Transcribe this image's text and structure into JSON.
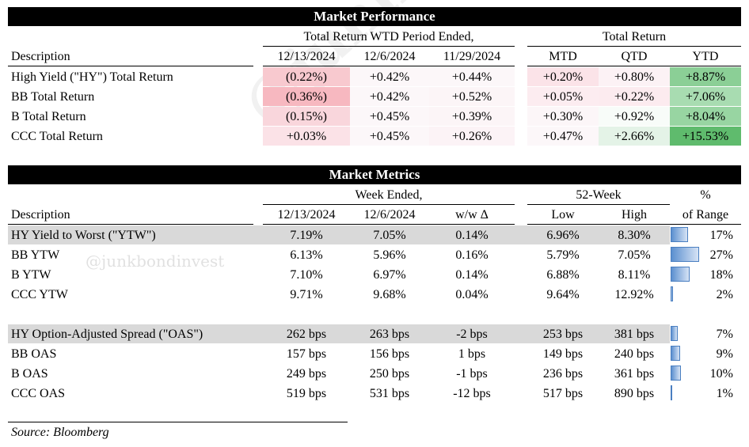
{
  "market_performance": {
    "title": "Market Performance",
    "group1_header": "Total Return WTD Period Ended,",
    "group2_header": "Total Return",
    "desc_header": "Description",
    "columns": [
      "12/13/2024",
      "12/6/2024",
      "11/29/2024",
      "MTD",
      "QTD",
      "YTD"
    ],
    "rows": [
      {
        "label": "High Yield (\"HY\") Total Return",
        "values": [
          "(0.22%)",
          "+0.42%",
          "+0.44%",
          "+0.20%",
          "+0.80%",
          "+8.87%"
        ]
      },
      {
        "label": "BB Total Return",
        "values": [
          "(0.36%)",
          "+0.42%",
          "+0.52%",
          "+0.05%",
          "+0.22%",
          "+7.06%"
        ]
      },
      {
        "label": "B Total Return",
        "values": [
          "(0.15%)",
          "+0.45%",
          "+0.39%",
          "+0.30%",
          "+0.92%",
          "+8.04%"
        ]
      },
      {
        "label": "CCC Total Return",
        "values": [
          "+0.03%",
          "+0.45%",
          "+0.26%",
          "+0.47%",
          "+2.66%",
          "+15.53%"
        ]
      }
    ],
    "cell_colors": [
      [
        "#f8c9cf",
        "#fcf7f9",
        "#fcf7f9",
        "#fbe3e8",
        "#fcf2f5",
        "#8bcf96"
      ],
      [
        "#f7b8c0",
        "#fcf7f9",
        "#fcf5f7",
        "#fcecf0",
        "#fcebef",
        "#a8dcb1"
      ],
      [
        "#f9d6dc",
        "#fcf7f9",
        "#fcf5f7",
        "#fcf6f8",
        "#f8fcf9",
        "#98d5a2"
      ],
      [
        "#fbe2e7",
        "#fcf7f9",
        "#fcf3f6",
        "#fcf7f9",
        "#e4f3e7",
        "#5fbb6d"
      ]
    ]
  },
  "market_metrics": {
    "title": "Market Metrics",
    "group1_header": "Week Ended,",
    "group2_header": "52-Week",
    "group3_header": "%",
    "desc_header": "Description",
    "columns": [
      "12/13/2024",
      "12/6/2024",
      "w/w Δ",
      "Low",
      "High",
      "of Range"
    ],
    "rows": [
      {
        "label": "HY Yield to Worst (\"YTW\")",
        "values": [
          "7.19%",
          "7.05%",
          "0.14%",
          "6.96%",
          "8.30%",
          "17%"
        ],
        "range_pct": 17,
        "shaded": true
      },
      {
        "label": "BB YTW",
        "values": [
          "6.13%",
          "5.96%",
          "0.16%",
          "5.79%",
          "7.05%",
          "27%"
        ],
        "range_pct": 27,
        "shaded": false
      },
      {
        "label": "B YTW",
        "values": [
          "7.10%",
          "6.97%",
          "0.14%",
          "6.88%",
          "8.11%",
          "18%"
        ],
        "range_pct": 18,
        "shaded": false
      },
      {
        "label": "CCC YTW",
        "values": [
          "9.71%",
          "9.68%",
          "0.04%",
          "9.64%",
          "12.92%",
          "2%"
        ],
        "range_pct": 2,
        "shaded": false
      },
      {
        "label": "HY Option-Adjusted Spread (\"OAS\")",
        "values": [
          "262 bps",
          "263 bps",
          "-2 bps",
          "253 bps",
          "381 bps",
          "7%"
        ],
        "range_pct": 7,
        "shaded": true
      },
      {
        "label": "BB OAS",
        "values": [
          "157 bps",
          "156 bps",
          "1 bps",
          "149 bps",
          "240 bps",
          "9%"
        ],
        "range_pct": 9,
        "shaded": false
      },
      {
        "label": "B OAS",
        "values": [
          "249 bps",
          "250 bps",
          "-1 bps",
          "236 bps",
          "361 bps",
          "10%"
        ],
        "range_pct": 10,
        "shaded": false
      },
      {
        "label": "CCC OAS",
        "values": [
          "519 bps",
          "531 bps",
          "-12 bps",
          "517 bps",
          "890 bps",
          "1%"
        ],
        "range_pct": 1,
        "shaded": false
      }
    ]
  },
  "source": "Source: Bloomberg",
  "watermark": "@junkbondinvest",
  "watermark_small": "@junkbondinvest"
}
